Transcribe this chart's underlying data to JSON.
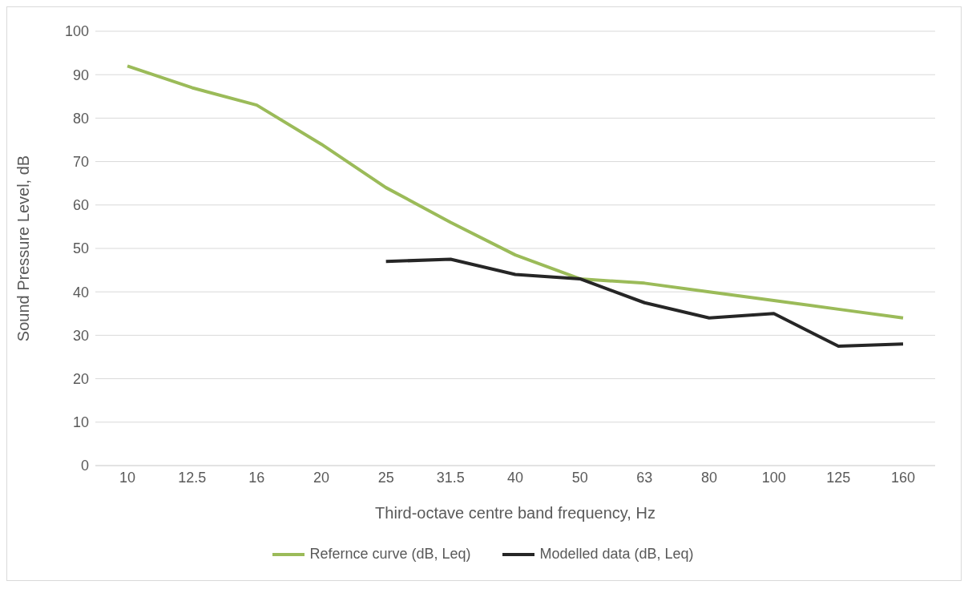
{
  "chart_data": {
    "type": "line",
    "xlabel": "Third-octave centre band frequency, Hz",
    "ylabel": "Sound Pressure Level, dB",
    "categories": [
      "10",
      "12.5",
      "16",
      "20",
      "25",
      "31.5",
      "40",
      "50",
      "63",
      "80",
      "100",
      "125",
      "160"
    ],
    "series": [
      {
        "name": "Refernce curve (dB, Leq)",
        "color": "#9bbb59",
        "values": [
          92,
          87,
          83,
          74,
          64,
          56,
          48.5,
          43,
          42,
          40,
          38,
          36,
          34
        ]
      },
      {
        "name": "Modelled data (dB, Leq)",
        "color": "#262626",
        "values": [
          null,
          null,
          null,
          null,
          47,
          47.5,
          44,
          43,
          37.5,
          34,
          35,
          27.5,
          28
        ]
      }
    ],
    "ylim": [
      0,
      100
    ],
    "yticks": [
      0,
      10,
      20,
      30,
      40,
      50,
      60,
      70,
      80,
      90,
      100
    ],
    "grid": "y",
    "legend": "bottom",
    "marker": "none",
    "line_style": "solid"
  }
}
